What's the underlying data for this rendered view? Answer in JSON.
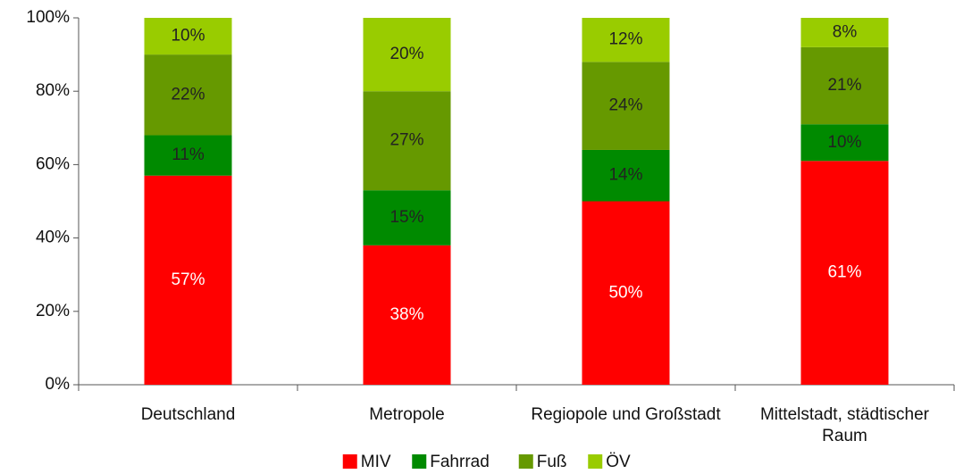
{
  "chart_data": {
    "type": "stacked_bar",
    "categories": [
      "Deutschland",
      "Metropole",
      "Regiopole und Großstadt",
      "Mittelstadt, städtischer Raum"
    ],
    "series": [
      {
        "name": "MIV",
        "color": "#ff0000",
        "values": [
          57,
          38,
          50,
          61
        ],
        "value_labels": [
          "57%",
          "38%",
          "50%",
          "61%"
        ]
      },
      {
        "name": "Fahrrad",
        "color": "#008a00",
        "values": [
          11,
          15,
          14,
          10
        ],
        "value_labels": [
          "11%",
          "15%",
          "14%",
          "10%"
        ]
      },
      {
        "name": "Fuß",
        "color": "#669900",
        "values": [
          22,
          27,
          24,
          21
        ],
        "value_labels": [
          "22%",
          "27%",
          "24%",
          "21%"
        ]
      },
      {
        "name": "ÖV",
        "color": "#99cc00",
        "values": [
          10,
          20,
          12,
          8
        ],
        "value_labels": [
          "10%",
          "20%",
          "12%",
          "8%"
        ]
      }
    ],
    "ylim": [
      0,
      100
    ],
    "yticks": [
      {
        "value": 0,
        "label": "0%"
      },
      {
        "value": 20,
        "label": "20%"
      },
      {
        "value": 40,
        "label": "40%"
      },
      {
        "value": 60,
        "label": "60%"
      },
      {
        "value": 80,
        "label": "80%"
      },
      {
        "value": 100,
        "label": "100%"
      }
    ],
    "grid": false,
    "legend": "bottom"
  }
}
